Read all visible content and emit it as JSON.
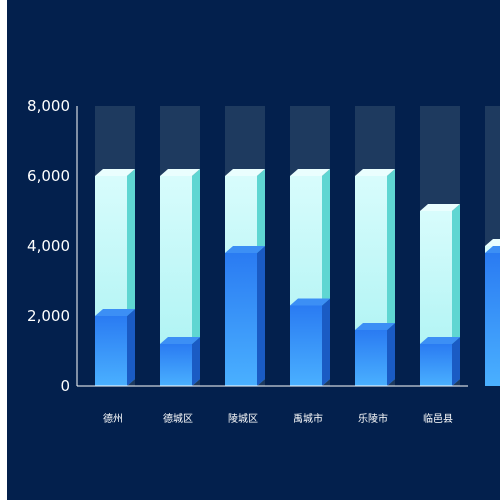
{
  "chart_data": {
    "type": "bar",
    "categories": [
      "德州",
      "德城区",
      "陵城区",
      "禹城市",
      "乐陵市",
      "临邑县",
      ""
    ],
    "series": [
      {
        "values": [
          6000,
          6000,
          6000,
          6000,
          6000,
          5000,
          4000
        ]
      },
      {
        "values": [
          2000,
          1200,
          3800,
          2300,
          1600,
          1200,
          3800
        ]
      }
    ],
    "background_value": 8000,
    "ylim": [
      0,
      8000
    ],
    "yticks": [
      0,
      2000,
      4000,
      6000,
      8000
    ],
    "ytick_labels": [
      "0",
      "2,000",
      "4,000",
      "6,000",
      "8,000"
    ],
    "grid": false,
    "colors": {
      "background": "#03204d",
      "track": "#1e3a5f",
      "outer_front_top": "#d8fcfc",
      "outer_front_bottom": "#a7f2f2",
      "outer_side": "#5fd6d2",
      "outer_cap": "#eafefe",
      "inner_front_top": "#2a7bf2",
      "inner_front_bottom": "#4ab0ff",
      "inner_side": "#1a5bc4",
      "inner_cap": "#3c8ff5"
    }
  }
}
